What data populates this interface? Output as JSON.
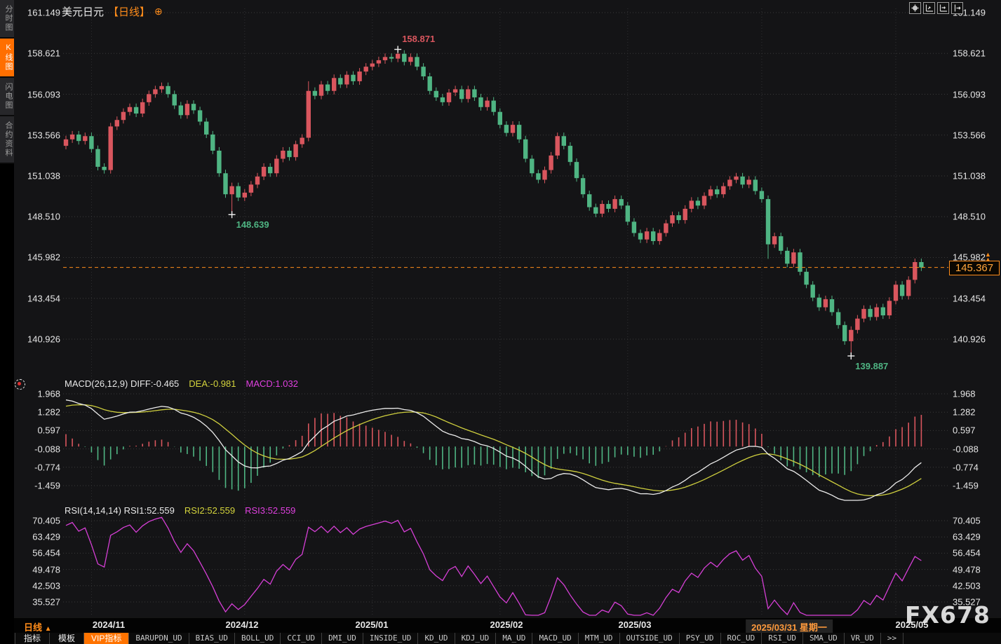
{
  "window": {
    "symbol": "美元日元",
    "period_tag": "【日线】",
    "compare_icon": "⊕"
  },
  "sidebar": {
    "items": [
      {
        "label": "分时图",
        "active": false
      },
      {
        "label": "K线图",
        "active": true
      },
      {
        "label": "闪电图",
        "active": false
      },
      {
        "label": "合约资料",
        "active": false
      }
    ]
  },
  "chart_data": {
    "type": "candlestick+indicators",
    "symbol": "美元日元",
    "period": "日线",
    "price_axis_labels": [
      "161.149",
      "158.621",
      "156.093",
      "153.566",
      "151.038",
      "148.510",
      "145.982",
      "143.454",
      "140.926"
    ],
    "macd_axis_labels": [
      "1.968",
      "1.282",
      "0.597",
      "-0.088",
      "-0.774",
      "-1.459"
    ],
    "rsi_axis_labels": [
      "70.405",
      "63.429",
      "56.454",
      "49.478",
      "42.503",
      "35.527"
    ],
    "x_axis_labels": [
      "2024/11",
      "2024/12",
      "2025/01",
      "2025/02",
      "2025/03",
      "2025/03/31 星期一",
      "2025/05"
    ],
    "highlighted_x_label_index": 5,
    "first_open": 152.9,
    "closes": [
      153.3,
      153.6,
      153.2,
      153.5,
      152.7,
      151.6,
      151.4,
      154.1,
      154.5,
      155.0,
      155.3,
      154.9,
      155.6,
      156.1,
      156.4,
      156.6,
      156.1,
      155.4,
      154.8,
      155.5,
      155.1,
      154.4,
      153.6,
      152.6,
      151.2,
      149.9,
      150.4,
      149.7,
      150.0,
      150.5,
      151.0,
      151.6,
      151.2,
      152.1,
      152.6,
      152.2,
      153.0,
      153.4,
      156.3,
      156.0,
      156.7,
      156.3,
      157.1,
      156.7,
      157.3,
      156.9,
      157.5,
      157.8,
      158.0,
      158.2,
      158.4,
      158.3,
      158.6,
      158.1,
      158.4,
      157.8,
      157.2,
      156.3,
      155.9,
      155.6,
      156.2,
      156.4,
      155.8,
      156.4,
      155.9,
      155.3,
      155.7,
      155.0,
      154.2,
      153.7,
      154.2,
      153.3,
      152.1,
      151.2,
      150.8,
      151.4,
      152.3,
      153.5,
      152.9,
      151.9,
      150.9,
      149.9,
      149.1,
      148.7,
      149.3,
      149.0,
      149.6,
      149.2,
      148.2,
      147.5,
      147.1,
      147.6,
      147.0,
      147.5,
      148.1,
      148.6,
      148.3,
      149.0,
      149.5,
      149.2,
      149.8,
      150.2,
      149.9,
      150.4,
      150.8,
      151.0,
      150.5,
      150.8,
      150.1,
      149.6,
      146.8,
      147.3,
      146.4,
      145.6,
      146.3,
      145.1,
      144.3,
      143.5,
      142.9,
      143.4,
      142.6,
      141.8,
      140.8,
      141.5,
      142.2,
      142.8,
      142.3,
      142.9,
      142.4,
      143.3,
      144.3,
      143.6,
      144.6,
      145.7,
      145.367
    ],
    "wick_default": 0.22,
    "wick_overrides": {
      "26": {
        "low": 148.639
      },
      "38": {
        "high": 156.9
      },
      "52": {
        "high": 158.871
      },
      "110": {
        "low": 145.9
      },
      "123": {
        "low": 139.887
      }
    },
    "month_start_indices": [
      4,
      28,
      48,
      68,
      88,
      109,
      130
    ],
    "annotations": [
      {
        "label": "158.871",
        "candle_index": 52,
        "price": 158.871,
        "side": "high",
        "trend": "up"
      },
      {
        "label": "148.639",
        "candle_index": 26,
        "price": 148.639,
        "side": "low",
        "trend": "down"
      },
      {
        "label": "139.887",
        "candle_index": 123,
        "price": 139.887,
        "side": "low",
        "trend": "down"
      }
    ],
    "last_price": "145.367",
    "last_price_value": 145.367,
    "indicator_seeds": {
      "ema12": 152.4,
      "ema26": 150.6,
      "dea": 1.45,
      "rsi_gain": 0.38,
      "rsi_loss": 0.19
    },
    "colors": {
      "up": "#d9565e",
      "down": "#4fb583",
      "diff_line": "#ececec",
      "dea_line": "#cfcf3e",
      "rsi_line": "#d63fd6",
      "accent": "#ff8c1a",
      "grid": "#3a3a3a"
    }
  },
  "macd_panel": {
    "name_label": "MACD(26,12,9)",
    "diff_label": "DIFF:-0.465",
    "dea_label": "DEA:-0.981",
    "macd_label": "MACD:1.032"
  },
  "rsi_panel": {
    "name_label": "RSI(14,14,14)",
    "rsi1_label": "RSI1:52.559",
    "rsi2_label": "RSI2:52.559",
    "rsi3_label": "RSI3:52.559"
  },
  "bottom": {
    "period_selector": "日线",
    "period_selector_arrow": "▲",
    "watermark": "FX678"
  },
  "tabs": {
    "left": [
      "指标",
      "模板"
    ],
    "vip": "VIP指标",
    "indicators": [
      "BARUPDN_UD",
      "BIAS_UD",
      "BOLL_UD",
      "CCI_UD",
      "DMI_UD",
      "INSIDE_UD",
      "KD_UD",
      "KDJ_UD",
      "MA_UD",
      "MACD_UD",
      "MTM_UD",
      "OUTSIDE_UD",
      "PSY_UD",
      "ROC_UD",
      "RSI_UD",
      "SMA_UD",
      "VR_UD"
    ],
    "more": ">>"
  },
  "top_icons": [
    {
      "name": "pan-tool-icon"
    },
    {
      "name": "axis-zoom-vertical-icon"
    },
    {
      "name": "axis-zoom-horizontal-icon"
    },
    {
      "name": "scroll-to-latest-icon"
    }
  ]
}
